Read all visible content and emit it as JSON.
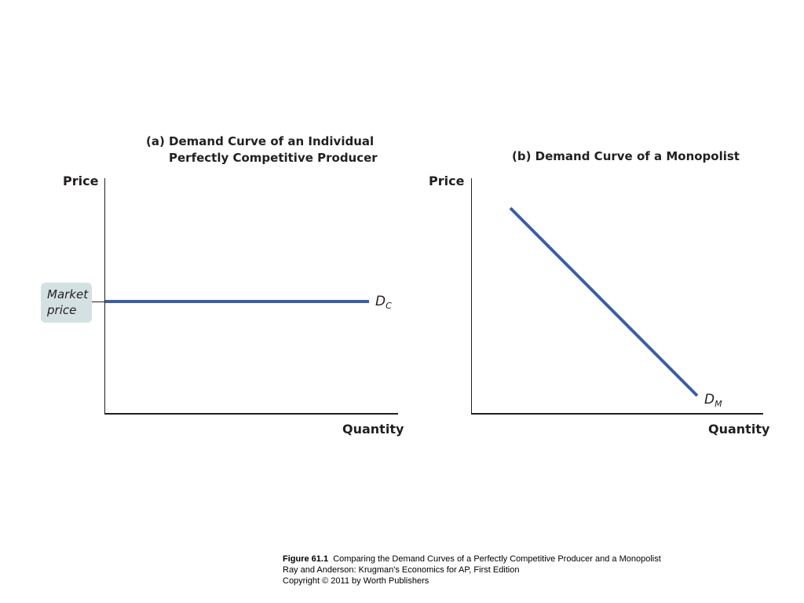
{
  "panel_a": {
    "title_line1": "(a) Demand Curve of an Individual",
    "title_line2": "Perfectly Competitive Producer",
    "y_label": "Price",
    "x_label": "Quantity",
    "market_price_line1": "Market",
    "market_price_line2": "price",
    "curve_label": "D",
    "curve_label_sub": "C",
    "curve_color": "#3b5ea8"
  },
  "panel_b": {
    "title": "(b) Demand Curve of a Monopolist",
    "y_label": "Price",
    "x_label": "Quantity",
    "curve_label": "D",
    "curve_label_sub": "M",
    "curve_color": "#3b5ea8"
  },
  "caption": {
    "figure_number": "Figure 61.1",
    "figure_title": "Comparing the Demand Curves of a Perfectly Competitive Producer and a Monopolist",
    "source": "Ray and Anderson: Krugman's Economics for AP, First Edition",
    "copyright": "Copyright © 2011 by Worth Publishers"
  }
}
